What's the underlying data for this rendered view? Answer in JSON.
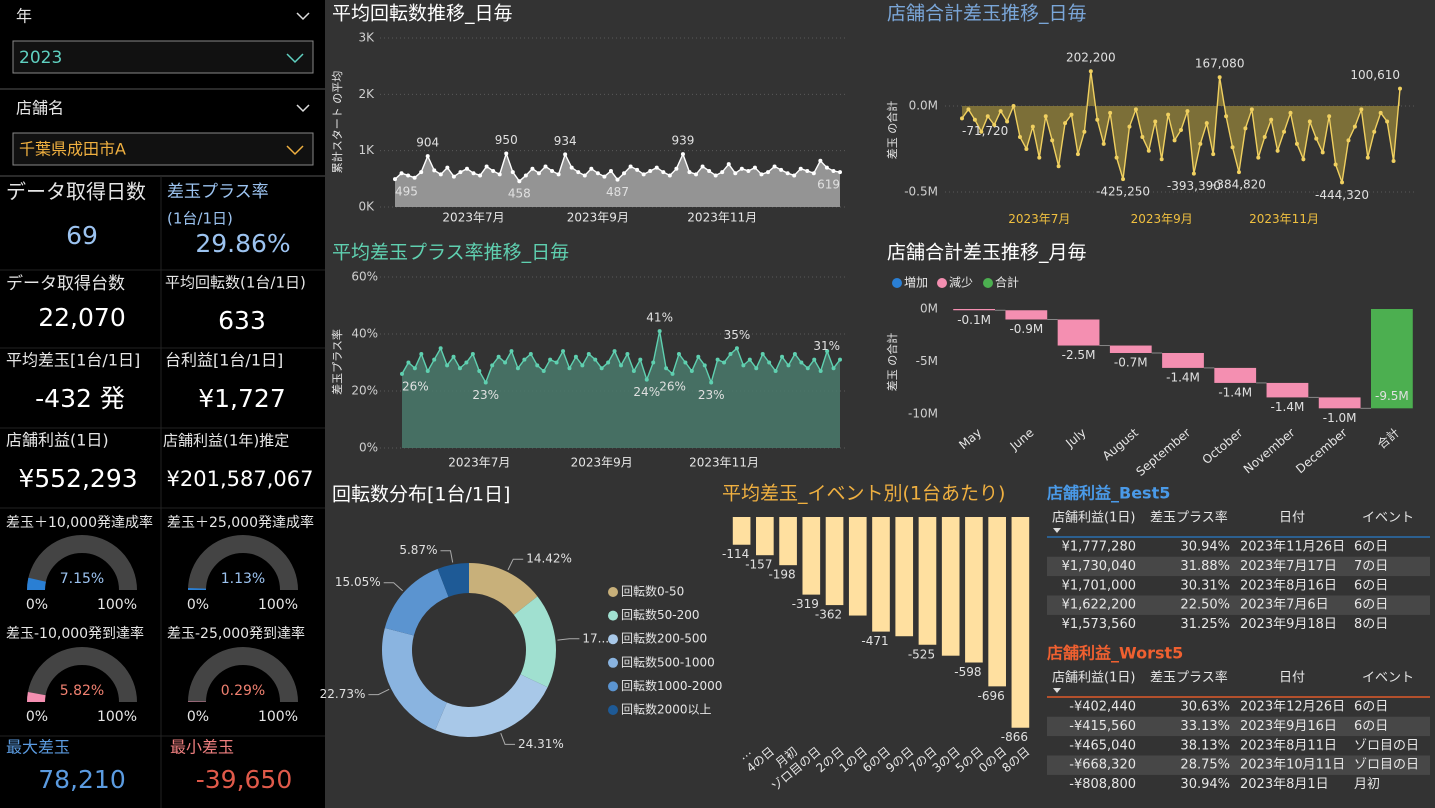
{
  "filters": [
    {
      "label": "年",
      "value": "2023"
    },
    {
      "label": "店舗名",
      "value": "千葉県成田市A"
    }
  ],
  "kpis": [
    {
      "label": "データ取得日数",
      "value": "69"
    },
    {
      "label": "差玉プラス率",
      "sublabel": "(1台/1日)",
      "value": "29.86%"
    },
    {
      "label": "データ取得台数",
      "value": "22,070"
    },
    {
      "label": "平均回転数(1台/1日)",
      "value": "633"
    },
    {
      "label": "平均差玉[1台/1日]",
      "value": "-432 発"
    },
    {
      "label": "台利益[1台/1日]",
      "value": "¥1,727"
    },
    {
      "label": "店舗利益(1日)",
      "value": "¥552,293"
    },
    {
      "label": "店舗利益(1年)推定",
      "value": "¥201,587,067"
    },
    {
      "label": "最大差玉",
      "value": "78,210"
    },
    {
      "label": "最小差玉",
      "value": "-39,650"
    }
  ],
  "gauges": [
    {
      "label": "差玉＋10,000発達成率",
      "value": 7.15,
      "value_label": "7.15%",
      "min": {
        "value": 0,
        "label": "0%"
      },
      "max": {
        "value": 100,
        "label": "100%"
      },
      "color": "#2a7fd4"
    },
    {
      "label": "差玉＋25,000発達成率",
      "value": 1.13,
      "value_label": "1.13%",
      "min": {
        "value": 0,
        "label": "0%"
      },
      "max": {
        "value": 100,
        "label": "100%"
      },
      "color": "#2a7fd4"
    },
    {
      "label": "差玉-10,000発到達率",
      "value": 5.82,
      "value_label": "5.82%",
      "min": {
        "value": 0,
        "label": "0%"
      },
      "max": {
        "value": 100,
        "label": "100%"
      },
      "color": "#f48fb1"
    },
    {
      "label": "差玉-25,000発到達率",
      "value": 0.29,
      "value_label": "0.29%",
      "min": {
        "value": 0,
        "label": "0%"
      },
      "max": {
        "value": 100,
        "label": "100%"
      },
      "color": "#f48fb1"
    }
  ],
  "chart_data": [
    {
      "type": "line",
      "title": "平均回転数推移_日毎",
      "y_label": "累計スタート の平均",
      "categories": [
        null,
        null,
        null,
        null,
        null,
        null,
        null,
        null,
        null,
        null,
        null,
        null,
        "2023年7月",
        null,
        null,
        null,
        null,
        null,
        null,
        null,
        null,
        null,
        null,
        null,
        null,
        null,
        null,
        null,
        null,
        null,
        null,
        "2023年9月",
        null,
        null,
        null,
        null,
        null,
        null,
        null,
        null,
        null,
        null,
        null,
        null,
        null,
        null,
        null,
        null,
        null,
        null,
        "2023年11月",
        null,
        null,
        null,
        null,
        null,
        null,
        null,
        null,
        null,
        null,
        null,
        null,
        null,
        null,
        null,
        null,
        null,
        null
      ],
      "values": [
        495,
        600,
        560,
        520,
        620,
        904,
        650,
        580,
        700,
        540,
        620,
        680,
        600,
        560,
        720,
        640,
        580,
        950,
        620,
        458,
        560,
        680,
        600,
        720,
        640,
        580,
        934,
        700,
        620,
        560,
        680,
        600,
        540,
        640,
        487,
        600,
        720,
        660,
        580,
        640,
        700,
        620,
        560,
        680,
        939,
        620,
        580,
        720,
        640,
        560,
        620,
        760,
        600,
        680,
        640,
        700,
        580,
        620,
        720,
        660,
        600,
        560,
        680,
        640,
        600,
        820,
        700,
        640,
        619
      ],
      "value_labels": [
        "495",
        null,
        null,
        null,
        null,
        "904",
        null,
        null,
        null,
        null,
        null,
        null,
        null,
        null,
        null,
        null,
        null,
        "950",
        null,
        "458",
        null,
        null,
        null,
        null,
        null,
        null,
        "934",
        null,
        null,
        null,
        null,
        null,
        null,
        null,
        "487",
        null,
        null,
        null,
        null,
        null,
        null,
        null,
        null,
        null,
        "939",
        null,
        null,
        null,
        null,
        null,
        null,
        null,
        null,
        null,
        null,
        null,
        null,
        null,
        null,
        null,
        null,
        null,
        null,
        null,
        null,
        null,
        null,
        null,
        "619"
      ],
      "ylim": [
        0,
        3000
      ],
      "yticks": [
        {
          "value": 0,
          "label": "0K"
        },
        {
          "value": 1000,
          "label": "1K"
        },
        {
          "value": 2000,
          "label": "2K"
        },
        {
          "value": 3000,
          "label": "3K"
        }
      ],
      "grid": true,
      "color": "#ffffff",
      "fill_color": "#a6a6a6"
    },
    {
      "type": "line",
      "title": "平均差玉プラス率推移_日毎",
      "y_label": "差玉プラス率",
      "categories": [
        null,
        null,
        null,
        null,
        null,
        null,
        null,
        null,
        null,
        null,
        null,
        null,
        "2023年7月",
        null,
        null,
        null,
        null,
        null,
        null,
        null,
        null,
        null,
        null,
        null,
        null,
        null,
        null,
        null,
        null,
        null,
        null,
        "2023年9月",
        null,
        null,
        null,
        null,
        null,
        null,
        null,
        null,
        null,
        null,
        null,
        null,
        null,
        null,
        null,
        null,
        null,
        null,
        "2023年11月",
        null,
        null,
        null,
        null,
        null,
        null,
        null,
        null,
        null,
        null,
        null,
        null,
        null,
        null,
        null,
        null,
        null,
        null
      ],
      "values": [
        26,
        30,
        28,
        33,
        27,
        31,
        35,
        29,
        32,
        28,
        30,
        33,
        27,
        23,
        29,
        32,
        30,
        34,
        28,
        31,
        33,
        29,
        27,
        31,
        30,
        34,
        28,
        32,
        29,
        33,
        31,
        28,
        30,
        34,
        29,
        33,
        27,
        31,
        24,
        30,
        41,
        28,
        26,
        33,
        30,
        27,
        32,
        29,
        23,
        31,
        30,
        33,
        35,
        29,
        31,
        28,
        33,
        30,
        27,
        32,
        29,
        33,
        30,
        28,
        31,
        27,
        34,
        28,
        31
      ],
      "value_labels": [
        "26%",
        null,
        null,
        null,
        null,
        null,
        null,
        null,
        null,
        null,
        null,
        null,
        null,
        "23%",
        null,
        null,
        null,
        null,
        null,
        null,
        null,
        null,
        null,
        null,
        null,
        null,
        null,
        null,
        null,
        null,
        null,
        null,
        null,
        null,
        null,
        null,
        null,
        null,
        "24%",
        null,
        "41%",
        null,
        "26%",
        null,
        null,
        null,
        null,
        null,
        "23%",
        null,
        null,
        null,
        "35%",
        null,
        null,
        null,
        null,
        null,
        null,
        null,
        null,
        null,
        null,
        null,
        null,
        null,
        null,
        null,
        "31%"
      ],
      "ylim": [
        0,
        60
      ],
      "yticks": [
        {
          "value": 0,
          "label": "0%"
        },
        {
          "value": 20,
          "label": "20%"
        },
        {
          "value": 40,
          "label": "40%"
        },
        {
          "value": 60,
          "label": "60%"
        }
      ],
      "grid": true,
      "color": "#5fd0b0",
      "fill_color": "#4a7a6c"
    },
    {
      "type": "line",
      "title": "店舗合計差玉推移_日毎",
      "y_label": "差玉 の合計",
      "categories": [
        null,
        null,
        null,
        null,
        null,
        null,
        null,
        null,
        null,
        null,
        null,
        null,
        "2023年7月",
        null,
        null,
        null,
        null,
        null,
        null,
        null,
        null,
        null,
        null,
        null,
        null,
        null,
        null,
        null,
        null,
        null,
        null,
        "2023年9月",
        null,
        null,
        null,
        null,
        null,
        null,
        null,
        null,
        null,
        null,
        null,
        null,
        null,
        null,
        null,
        null,
        null,
        null,
        "2023年11月",
        null,
        null,
        null,
        null,
        null,
        null,
        null,
        null,
        null,
        null,
        null,
        null,
        null,
        null,
        null,
        null,
        null,
        null
      ],
      "values": [
        -71720,
        -20000,
        -80000,
        -150000,
        -60000,
        -110000,
        -30000,
        -90000,
        0,
        -180000,
        -250000,
        -120000,
        -300000,
        -60000,
        -200000,
        -350000,
        -100000,
        -50000,
        -280000,
        -150000,
        202200,
        -80000,
        -220000,
        -40000,
        -300000,
        -425250,
        -120000,
        -20000,
        -180000,
        -260000,
        -90000,
        -310000,
        -50000,
        -200000,
        -140000,
        -30000,
        -393390,
        -220000,
        -100000,
        -280000,
        167080,
        -60000,
        -240000,
        -384820,
        -130000,
        -20000,
        -300000,
        -180000,
        -80000,
        -260000,
        -150000,
        -40000,
        -220000,
        -310000,
        -90000,
        -190000,
        -270000,
        -60000,
        -340000,
        -444320,
        -200000,
        -120000,
        -20000,
        -300000,
        -150000,
        -40000,
        -90000,
        -320000,
        100610
      ],
      "value_labels": [
        "-71,720",
        null,
        null,
        null,
        null,
        null,
        null,
        null,
        null,
        null,
        null,
        null,
        null,
        null,
        null,
        null,
        null,
        null,
        null,
        null,
        "202,200",
        null,
        null,
        null,
        null,
        "-425,250",
        null,
        null,
        null,
        null,
        null,
        null,
        null,
        null,
        null,
        null,
        "-393,390",
        null,
        null,
        null,
        "167,080",
        null,
        null,
        "-384,820",
        null,
        null,
        null,
        null,
        null,
        null,
        null,
        null,
        null,
        null,
        null,
        null,
        null,
        null,
        null,
        "-444,320",
        null,
        null,
        null,
        null,
        null,
        null,
        null,
        null,
        "100,610"
      ],
      "ylim": [
        -550000,
        380000
      ],
      "yticks": [
        {
          "value": 0,
          "label": "0.0M"
        },
        {
          "value": -500000,
          "label": "-0.5M"
        }
      ],
      "grid": true,
      "color": "#f0d060",
      "fill_color": "#8a7a3a"
    },
    {
      "type": "waterfall",
      "title": "店舗合計差玉推移_月毎",
      "y_label": "差玉 の合計",
      "categories": [
        "May",
        "June",
        "July",
        "August",
        "September",
        "October",
        "November",
        "December",
        "合計"
      ],
      "values": [
        -120000,
        -880000,
        -2480000,
        -710000,
        -1420000,
        -1430000,
        -1380000,
        -1040000,
        -9460000
      ],
      "value_labels": [
        "-0.1M",
        "-0.9M",
        "-2.5M",
        "-0.7M",
        "-1.4M",
        "-1.4M",
        "-1.4M",
        "-1.0M",
        "-9.5M"
      ],
      "measures": [
        "relative",
        "relative",
        "relative",
        "relative",
        "relative",
        "relative",
        "relative",
        "relative",
        "total"
      ],
      "legend": [
        {
          "name": "増加",
          "color": "#2a7fd4"
        },
        {
          "name": "減少",
          "color": "#f48fb1"
        },
        {
          "name": "合計",
          "color": "#4caf50"
        }
      ],
      "ylim": [
        -10500000,
        0
      ],
      "yticks": [
        {
          "value": 0,
          "label": "0M"
        },
        {
          "value": -5000000,
          "label": "-5M"
        },
        {
          "value": -10000000,
          "label": "-10M"
        }
      ],
      "grid": false
    },
    {
      "type": "donut",
      "title": "回転数分布[1台/1日]",
      "categories": [
        "回転数0-50",
        "回転数50-200",
        "回転数200-500",
        "回転数500-1000",
        "回転数1000-2000",
        "回転数2000以上"
      ],
      "values": [
        14.42,
        17.62,
        24.31,
        22.73,
        15.05,
        5.87
      ],
      "value_labels": [
        "14.42%",
        "17...",
        "24.31%",
        "22.73%",
        "15.05%",
        "5.87%"
      ],
      "colors": [
        "#c8b07a",
        "#a0e0d0",
        "#a8c8e8",
        "#8ab4e0",
        "#5b94d0",
        "#1e5a96"
      ]
    },
    {
      "type": "bar",
      "title": "平均差玉_イベント別(1台あたり)",
      "categories": [
        "…",
        "4の日",
        "月初",
        "ゾロ目の日",
        "2の日",
        "1の日",
        "6の日",
        "9の日",
        "7の日",
        "3の日",
        "5の日",
        "0の日",
        "8の日"
      ],
      "values": [
        -114,
        -157,
        -198,
        -319,
        -362,
        -405,
        -471,
        -490,
        -525,
        -570,
        -598,
        -696,
        -866
      ],
      "value_labels": [
        "-114",
        "-157",
        "-198",
        "-319",
        "-362",
        null,
        "-471",
        null,
        "-525",
        null,
        "-598",
        "-696",
        "-866"
      ],
      "ylim": [
        -900,
        0
      ],
      "color": "#ffe0a0"
    }
  ],
  "tables": [
    {
      "title": "店舗利益_Best5",
      "columns": [
        "店舗利益(1日)",
        "差玉プラス率",
        "日付",
        "イベント"
      ],
      "rows": [
        [
          "¥1,777,280",
          "30.94%",
          "2023年11月26日",
          "6の日"
        ],
        [
          "¥1,730,040",
          "31.88%",
          "2023年7月17日",
          "7の日"
        ],
        [
          "¥1,701,000",
          "30.31%",
          "2023年8月16日",
          "6の日"
        ],
        [
          "¥1,622,200",
          "22.50%",
          "2023年7月6日",
          "6の日"
        ],
        [
          "¥1,573,560",
          "31.25%",
          "2023年9月18日",
          "8の日"
        ]
      ]
    },
    {
      "title": "店舗利益_Worst5",
      "columns": [
        "店舗利益(1日)",
        "差玉プラス率",
        "日付",
        "イベント"
      ],
      "rows": [
        [
          "-¥402,440",
          "30.63%",
          "2023年12月26日",
          "6の日"
        ],
        [
          "-¥415,560",
          "33.13%",
          "2023年9月16日",
          "6の日"
        ],
        [
          "-¥465,040",
          "38.13%",
          "2023年8月11日",
          "ゾロ目の日"
        ],
        [
          "-¥668,320",
          "28.75%",
          "2023年10月11日",
          "ゾロ目の日"
        ],
        [
          "-¥808,800",
          "30.94%",
          "2023年8月1日",
          "月初"
        ]
      ]
    }
  ]
}
